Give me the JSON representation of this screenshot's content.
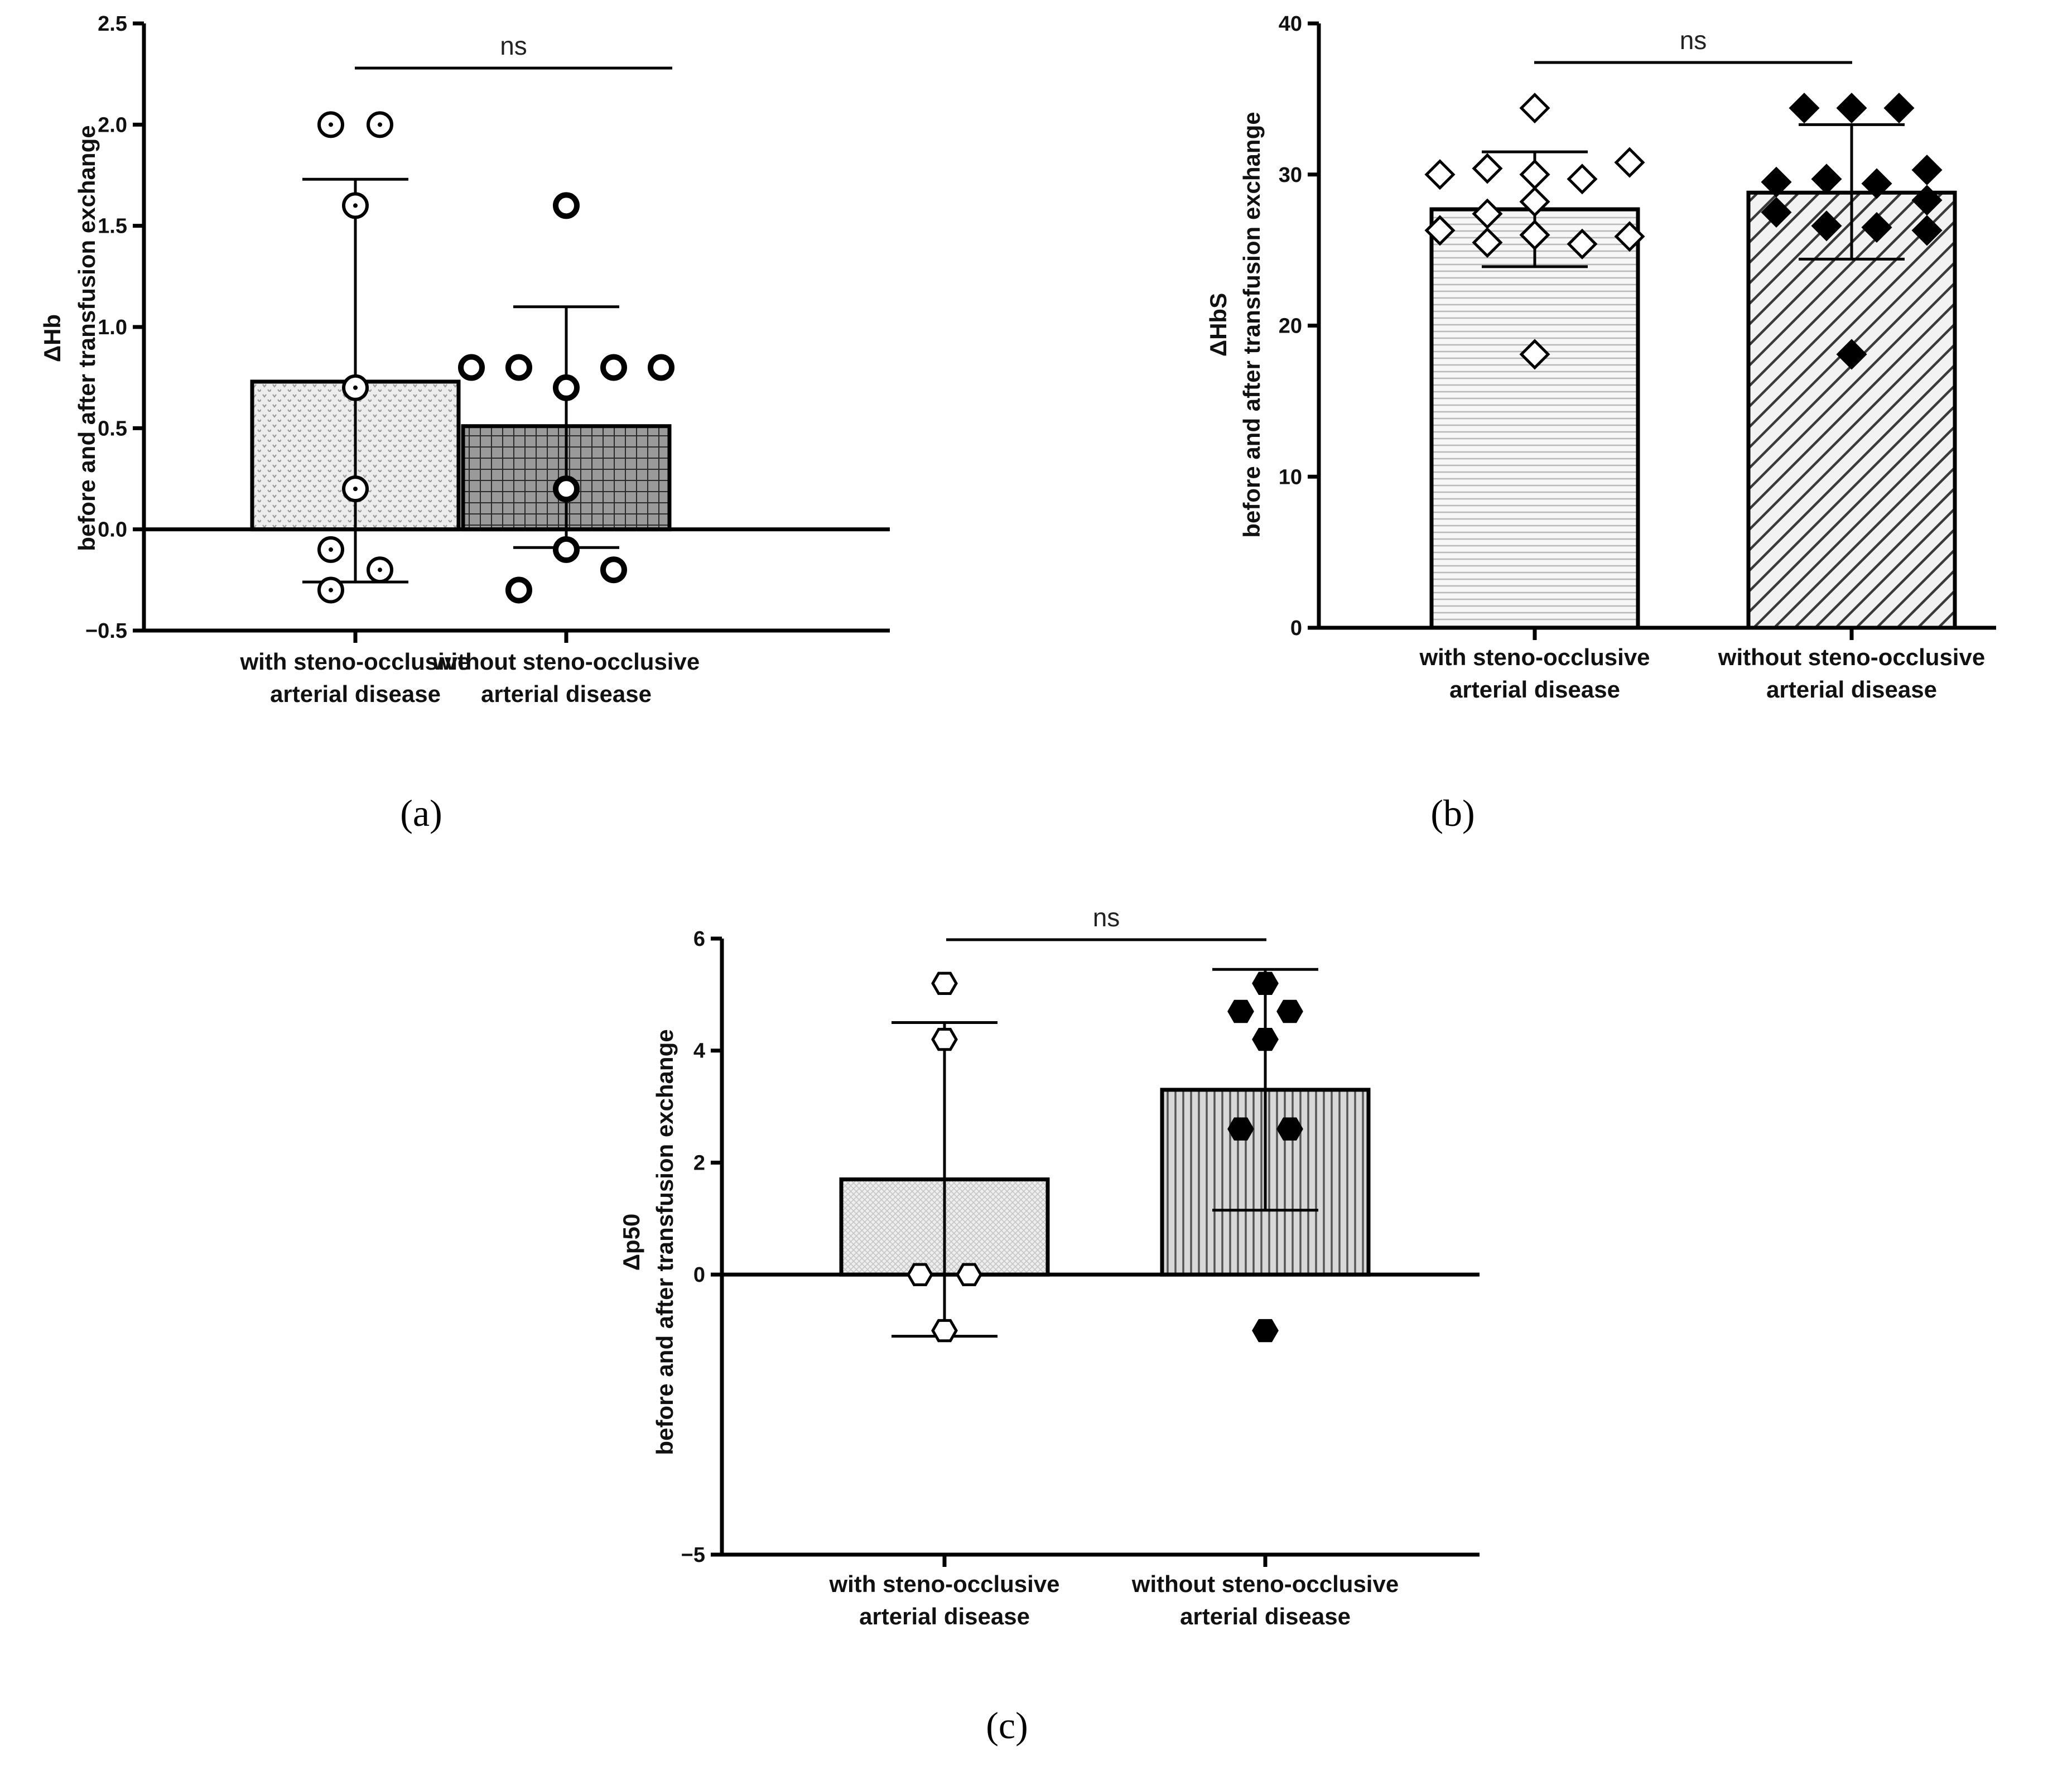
{
  "figure": {
    "panel_labels": [
      "(a)",
      "(b)",
      "(c)"
    ]
  },
  "chart_data": [
    {
      "panel": "(a)",
      "type": "bar",
      "title": "",
      "xlabel": "",
      "ylabel_lines": [
        "ΔHb",
        "before and after transfusion exchange"
      ],
      "ylim": [
        -0.5,
        2.5
      ],
      "yticks": [
        -0.5,
        0.0,
        0.5,
        1.0,
        1.5,
        2.0,
        2.5
      ],
      "ytick_labels": [
        "−0.5",
        "0.0",
        "0.5",
        "1.0",
        "1.5",
        "2.0",
        "2.5"
      ],
      "significance": "ns",
      "categories": [
        {
          "lines": [
            "with steno-occlusive",
            "arterial disease"
          ]
        },
        {
          "lines": [
            "without steno-occlusive",
            "arterial disease"
          ]
        }
      ],
      "series": [
        {
          "name": "with steno-occlusive arterial disease",
          "mean": 0.73,
          "sd_upper": 1.73,
          "sd_lower": -0.26,
          "fill": "dots-light",
          "marker": "circle-dot",
          "points": [
            2.0,
            2.0,
            1.6,
            0.7,
            0.2,
            -0.1,
            -0.2,
            -0.3
          ]
        },
        {
          "name": "without steno-occlusive arterial disease",
          "mean": 0.51,
          "sd_upper": 1.1,
          "sd_lower": -0.09,
          "fill": "grid-dark",
          "marker": "circle-bold",
          "points": [
            1.6,
            0.8,
            0.8,
            0.8,
            0.8,
            0.7,
            0.2,
            -0.1,
            -0.2,
            -0.3
          ]
        }
      ]
    },
    {
      "panel": "(b)",
      "type": "bar",
      "title": "",
      "xlabel": "",
      "ylabel_lines": [
        "ΔHbS",
        "before and after transfusion exchange"
      ],
      "ylim": [
        0,
        40
      ],
      "yticks": [
        0,
        10,
        20,
        30,
        40
      ],
      "ytick_labels": [
        "0",
        "10",
        "20",
        "30",
        "40"
      ],
      "significance": "ns",
      "categories": [
        {
          "lines": [
            "with steno-occlusive",
            "arterial disease"
          ]
        },
        {
          "lines": [
            "without steno-occlusive",
            "arterial disease"
          ]
        }
      ],
      "series": [
        {
          "name": "with steno-occlusive arterial disease",
          "mean": 27.7,
          "sd_upper": 31.5,
          "sd_lower": 23.9,
          "fill": "hlines",
          "marker": "diamond-open",
          "points": [
            34.4,
            30.8,
            30.4,
            30.0,
            30.0,
            29.7,
            28.2,
            27.4,
            26.3,
            26.0,
            25.9,
            25.5,
            25.4,
            18.1
          ]
        },
        {
          "name": "without steno-occlusive arterial disease",
          "mean": 28.8,
          "sd_upper": 33.3,
          "sd_lower": 24.4,
          "fill": "diag",
          "marker": "diamond-filled",
          "points": [
            34.4,
            34.4,
            34.4,
            30.3,
            29.7,
            29.5,
            29.4,
            28.3,
            27.5,
            26.6,
            26.5,
            26.3,
            18.1
          ]
        }
      ]
    },
    {
      "panel": "(c)",
      "type": "bar",
      "title": "",
      "xlabel": "",
      "ylabel_lines": [
        "Δp50",
        "before and after transfusion exchange"
      ],
      "ylim": [
        -5,
        6
      ],
      "yticks": [
        -5,
        0,
        2,
        4,
        6
      ],
      "ytick_labels": [
        "−5",
        "0",
        "2",
        "4",
        "6"
      ],
      "significance": "ns",
      "categories": [
        {
          "lines": [
            "with steno-occlusive",
            "arterial disease"
          ]
        },
        {
          "lines": [
            "without steno-occlusive",
            "arterial disease"
          ]
        }
      ],
      "series": [
        {
          "name": "with steno-occlusive arterial disease",
          "mean": 1.7,
          "sd_upper": 4.5,
          "sd_lower": -1.1,
          "fill": "crosshatch-light",
          "marker": "hexagon-open",
          "points": [
            5.2,
            4.2,
            0.0,
            0.0,
            -1.0
          ]
        },
        {
          "name": "without steno-occlusive arterial disease",
          "mean": 3.3,
          "sd_upper": 5.45,
          "sd_lower": 1.15,
          "fill": "vlines",
          "marker": "hexagon-filled",
          "points": [
            5.2,
            4.7,
            4.7,
            4.2,
            2.6,
            2.6,
            -1.0
          ]
        }
      ]
    }
  ]
}
